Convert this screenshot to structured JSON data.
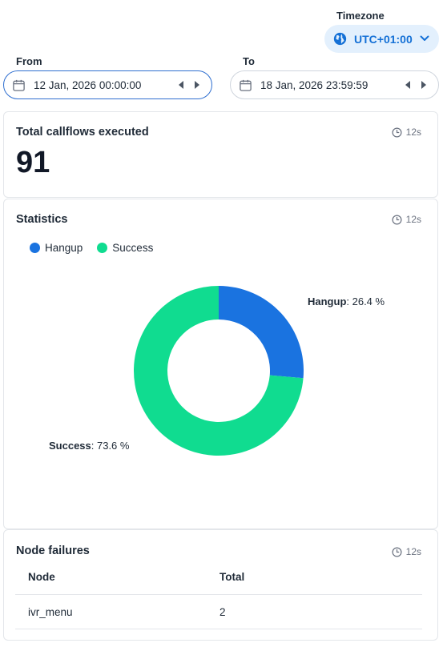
{
  "timezone": {
    "label": "Timezone",
    "value": "UTC+01:00",
    "icon": "globe-icon",
    "accent": "#1470d6"
  },
  "range": {
    "from_label": "From",
    "from_value": "12 Jan, 2026 00:00:00",
    "to_label": "To",
    "to_value": "18 Jan, 2026 23:59:59"
  },
  "total_card": {
    "title": "Total callflows executed",
    "refresh": "12s",
    "value": "91"
  },
  "stats_card": {
    "title": "Statistics",
    "refresh": "12s",
    "legend": [
      {
        "name": "Hangup",
        "color": "#1a73e0"
      },
      {
        "name": "Success",
        "color": "#10dc90"
      }
    ],
    "labels": {
      "hangup_name": "Hangup",
      "hangup_value": ": 26.4 %",
      "success_name": "Success",
      "success_value": ": 73.6 %"
    }
  },
  "chart_data": {
    "type": "pie",
    "categories": [
      "Hangup",
      "Success"
    ],
    "values": [
      26.4,
      73.6
    ],
    "colors": [
      "#1a73e0",
      "#10dc90"
    ],
    "donut": true,
    "title": "",
    "legend_position": "top-left"
  },
  "failures_card": {
    "title": "Node failures",
    "refresh": "12s",
    "columns": [
      "Node",
      "Total"
    ],
    "rows": [
      {
        "node": "ivr_menu",
        "total": "2"
      }
    ]
  }
}
